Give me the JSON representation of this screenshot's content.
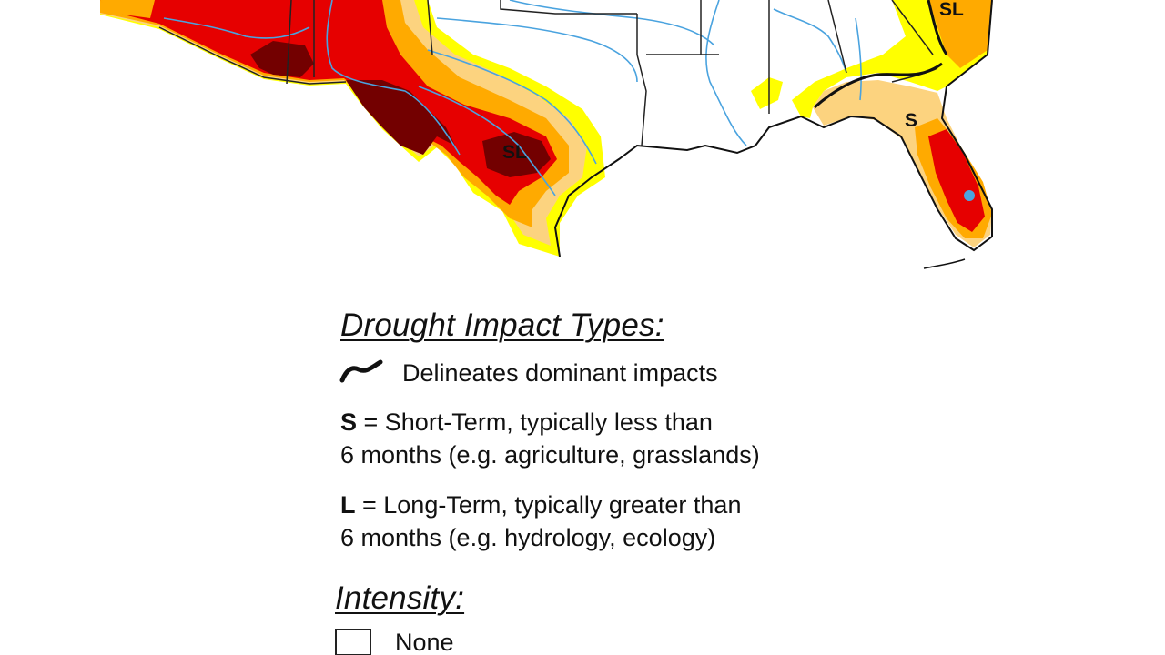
{
  "map": {
    "impact_labels": [
      "SL",
      "SL",
      "S"
    ],
    "colors": {
      "none": "#ffffff",
      "abnormally_dry": "#ffff00",
      "moderate": "#fcd37f",
      "severe": "#ffaa00",
      "extreme": "#e60000",
      "exceptional": "#730000",
      "water": "#4aa3df",
      "border": "#222222"
    }
  },
  "legend": {
    "impact_heading": "Drought Impact Types:",
    "delineates": "Delineates dominant impacts",
    "short_term_key": "S",
    "short_term_line1": " = Short-Term, typically less than",
    "short_term_line2": "6 months (e.g. agriculture, grasslands)",
    "long_term_key": "L",
    "long_term_line1": " = Long-Term, typically greater than",
    "long_term_line2": "6 months (e.g. hydrology, ecology)",
    "intensity_heading": "Intensity:",
    "none_label": "None"
  }
}
